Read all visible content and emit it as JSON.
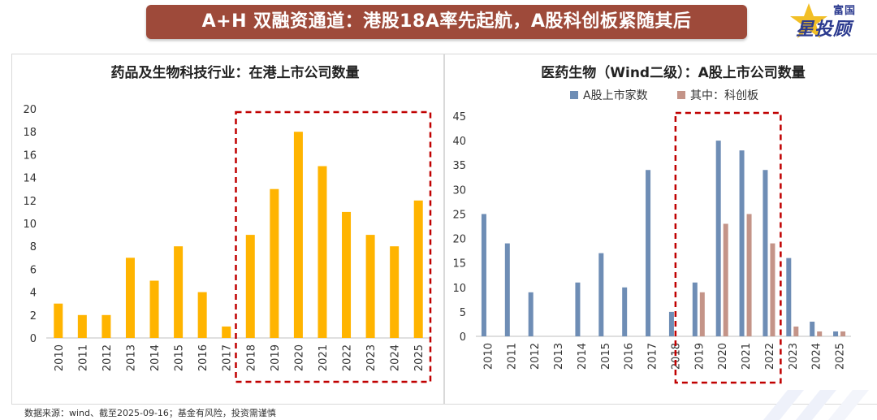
{
  "header": {
    "title": "A+H 双融资通道：港股18A率先起航，A股科创板紧随其后",
    "logo_small": "富国",
    "logo_main": "星投顾"
  },
  "footer": {
    "source": "数据来源：wind、截至2025-09-16；基金有风险，投资需谨慎"
  },
  "colors": {
    "banner": "#9e4a3a",
    "bar_left": "#ffb400",
    "series_a": "#6e8db5",
    "series_star": "#c49488",
    "highlight_box": "#c00000"
  },
  "chart_data": [
    {
      "type": "bar",
      "title": "药品及生物科技行业：在港上市公司数量",
      "categories": [
        "2010",
        "2011",
        "2012",
        "2013",
        "2014",
        "2015",
        "2016",
        "2017",
        "2018",
        "2019",
        "2020",
        "2021",
        "2022",
        "2023",
        "2024",
        "2025"
      ],
      "values": [
        3,
        2,
        2,
        7,
        5,
        8,
        4,
        1,
        9,
        13,
        18,
        15,
        11,
        9,
        8,
        12
      ],
      "ylim": [
        0,
        20
      ],
      "yticks": [
        0,
        2,
        4,
        6,
        8,
        10,
        12,
        14,
        16,
        18,
        20
      ],
      "grid": false,
      "highlight_range": [
        "2018",
        "2025"
      ]
    },
    {
      "type": "bar",
      "title": "医药生物（Wind二级）：A股上市公司数量",
      "categories": [
        "2010",
        "2011",
        "2012",
        "2013",
        "2014",
        "2015",
        "2016",
        "2017",
        "2018",
        "2019",
        "2020",
        "2021",
        "2022",
        "2023",
        "2024",
        "2025"
      ],
      "series": [
        {
          "name": "A股上市家数",
          "values": [
            25,
            19,
            9,
            0,
            11,
            17,
            10,
            34,
            5,
            11,
            40,
            38,
            34,
            16,
            3,
            1
          ]
        },
        {
          "name": "其中：科创板",
          "values": [
            0,
            0,
            0,
            0,
            0,
            0,
            0,
            0,
            0,
            9,
            23,
            25,
            19,
            2,
            1,
            1
          ]
        }
      ],
      "ylim": [
        0,
        45
      ],
      "yticks": [
        0,
        5,
        10,
        15,
        20,
        25,
        30,
        35,
        40,
        45
      ],
      "legend": "top",
      "grid": false,
      "highlight_range": [
        "2019",
        "2022"
      ]
    }
  ]
}
